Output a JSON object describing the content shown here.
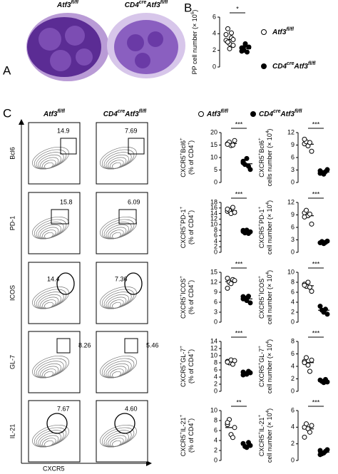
{
  "panel_a": {
    "label": "A",
    "titles": [
      [
        "Atf3",
        {
          "sup": "fl/fl"
        }
      ],
      [
        "CD4",
        {
          "sup": "cre"
        },
        "Atf3",
        {
          "sup": "fl/fl"
        }
      ]
    ]
  },
  "panel_b": {
    "label": "B",
    "legend": [
      [
        "Atf3",
        {
          "sup": "fl/fl"
        }
      ],
      [
        "CD4",
        {
          "sup": "cre"
        },
        "Atf3",
        {
          "sup": "fl/fl"
        }
      ]
    ],
    "chart": {
      "type": "dot",
      "ylabel": [
        [
          "PP cell number (× 10",
          {
            "sup": "6"
          },
          ")"
        ]
      ],
      "ylim": [
        0,
        6
      ],
      "yticks": [
        0,
        2,
        4,
        6
      ],
      "significance": "*",
      "series": [
        {
          "marker": "open",
          "values": [
            3.2,
            4.6,
            2.8,
            3.5,
            2.6,
            3.9,
            3.0,
            2.2,
            4.1,
            3.3
          ],
          "mean": 3.3
        },
        {
          "marker": "filled",
          "values": [
            2.3,
            2.0,
            2.6,
            1.8,
            2.4,
            1.9,
            2.1,
            2.8
          ],
          "mean": 2.2
        }
      ]
    }
  },
  "panel_c": {
    "label": "C",
    "column_titles": [
      [
        "Atf3",
        {
          "sup": "fl/fl"
        }
      ],
      [
        "CD4",
        {
          "sup": "cre"
        },
        "Atf3",
        {
          "sup": "fl/fl"
        }
      ]
    ],
    "legend": [
      [
        "Atf3",
        {
          "sup": "fl/fl"
        }
      ],
      [
        "CD4",
        {
          "sup": "cre"
        },
        "Atf3",
        {
          "sup": "fl/fl"
        }
      ]
    ],
    "x_label": "CXCR5",
    "rows": [
      {
        "marker": "Bcl6",
        "gates": [
          "14.9",
          "7.69"
        ],
        "dotplots": [
          {
            "type": "dot",
            "ylabel": [
              [
                "CXCR5",
                {
                  "sup": "+"
                },
                "Bcl6",
                {
                  "sup": "+"
                }
              ],
              [
                "(% of CD4",
                {
                  "sup": "+"
                },
                ")"
              ]
            ],
            "ylim": [
              0,
              20
            ],
            "yticks": [
              0,
              5,
              10,
              15,
              20
            ],
            "significance": "***",
            "series": [
              {
                "marker": "open",
                "values": [
                  15.5,
                  16.2,
                  14.8,
                  15.0,
                  16.8,
                  15.3
                ],
                "mean": 15.6
              },
              {
                "marker": "filled",
                "values": [
                  8.5,
                  7.2,
                  9.6,
                  6.5,
                  5.2,
                  7.9
                ],
                "mean": 7.5
              }
            ]
          },
          {
            "type": "dot",
            "ylabel": [
              [
                "CXCR5",
                {
                  "sup": "+"
                },
                "Bcl6",
                {
                  "sup": "+"
                }
              ],
              [
                "cells number (× 10",
                {
                  "sup": "4"
                },
                ")"
              ]
            ],
            "ylim": [
              0,
              12
            ],
            "yticks": [
              0,
              3,
              6,
              9,
              12
            ],
            "significance": "***",
            "series": [
              {
                "marker": "open",
                "values": [
                  9.3,
                  9.8,
                  8.8,
                  9.6,
                  7.5,
                  10.4
                ],
                "mean": 9.2
              },
              {
                "marker": "filled",
                "values": [
                  2.8,
                  2.4,
                  2.0,
                  2.6,
                  3.1,
                  2.2
                ],
                "mean": 2.5
              }
            ]
          }
        ]
      },
      {
        "marker": "PD-1",
        "gates": [
          "15.8",
          "6.09"
        ],
        "dotplots": [
          {
            "type": "dot",
            "ylabel": [
              [
                "CXCR5",
                {
                  "sup": "+"
                },
                "PD-1",
                {
                  "sup": "+"
                }
              ],
              [
                "(% of CD4",
                {
                  "sup": "+"
                },
                ")"
              ]
            ],
            "ylim": [
              0,
              18
            ],
            "yticks": [
              0,
              2,
              4,
              6,
              8,
              10,
              12,
              14,
              16,
              18
            ],
            "significance": "***",
            "series": [
              {
                "marker": "open",
                "values": [
                  14.8,
                  15.2,
                  14.0,
                  16.2,
                  14.4,
                  15.6
                ],
                "mean": 15.0
              },
              {
                "marker": "filled",
                "values": [
                  7.5,
                  7.0,
                  8.0,
                  6.8,
                  7.4,
                  7.9
                ],
                "mean": 7.4
              }
            ]
          },
          {
            "type": "dot",
            "ylabel": [
              [
                "CXCR5",
                {
                  "sup": "+"
                },
                "PD-1",
                {
                  "sup": "+"
                }
              ],
              [
                "cell number (× 10",
                {
                  "sup": "4"
                },
                ")"
              ]
            ],
            "ylim": [
              0,
              12
            ],
            "yticks": [
              0,
              3,
              6,
              9,
              12
            ],
            "significance": "***",
            "series": [
              {
                "marker": "open",
                "values": [
                  9.5,
                  10.1,
                  8.8,
                  9.2,
                  6.8,
                  8.5
                ],
                "mean": 8.8
              },
              {
                "marker": "filled",
                "values": [
                  2.3,
                  2.6,
                  2.1,
                  2.4,
                  2.7
                ],
                "mean": 2.4
              }
            ]
          }
        ]
      },
      {
        "marker": "ICOS",
        "gates": [
          "14.4",
          "7.36"
        ],
        "dotplots": [
          {
            "type": "dot",
            "ylabel": [
              [
                "CXCR5",
                {
                  "sup": "+"
                },
                "ICOS",
                {
                  "sup": "+"
                }
              ],
              [
                "(% of CD4",
                {
                  "sup": "+"
                },
                ")"
              ]
            ],
            "ylim": [
              0,
              15
            ],
            "yticks": [
              0,
              3,
              6,
              9,
              12,
              15
            ],
            "significance": "***",
            "series": [
              {
                "marker": "open",
                "values": [
                  13.2,
                  12.0,
                  11.6,
                  12.8,
                  12.5,
                  10.2
                ],
                "mean": 12.2
              },
              {
                "marker": "filled",
                "values": [
                  7.7,
                  7.2,
                  6.5,
                  7.8,
                  5.8,
                  7.0
                ],
                "mean": 7.0
              }
            ]
          },
          {
            "type": "dot",
            "ylabel": [
              [
                "CXCR5",
                {
                  "sup": "+"
                },
                "ICOS",
                {
                  "sup": "+"
                }
              ],
              [
                "cell number (× 10",
                {
                  "sup": "4"
                },
                ")"
              ]
            ],
            "ylim": [
              0,
              10
            ],
            "yticks": [
              0,
              2,
              4,
              6,
              8,
              10
            ],
            "significance": "***",
            "series": [
              {
                "marker": "open",
                "values": [
                  7.6,
                  7.2,
                  8.0,
                  7.0,
                  6.2,
                  7.4
                ],
                "mean": 7.3
              },
              {
                "marker": "filled",
                "values": [
                  3.2,
                  2.4,
                  2.0,
                  2.6,
                  1.6
                ],
                "mean": 2.4
              }
            ]
          }
        ]
      },
      {
        "marker": "GL-7",
        "gates": [
          "8.26",
          "5.46"
        ],
        "dotplots": [
          {
            "type": "dot",
            "ylabel": [
              [
                "CXCR5",
                {
                  "sup": "+"
                },
                "GL-7",
                {
                  "sup": "+"
                }
              ],
              [
                "(% of CD4",
                {
                  "sup": "+"
                },
                ")"
              ]
            ],
            "ylim": [
              0,
              14
            ],
            "yticks": [
              0,
              2,
              4,
              6,
              8,
              10,
              12,
              14
            ],
            "significance": "***",
            "series": [
              {
                "marker": "open",
                "values": [
                  8.4,
                  8.0,
                  8.8,
                  7.6,
                  8.6,
                  8.2
                ],
                "mean": 8.3
              },
              {
                "marker": "filled",
                "values": [
                  5.4,
                  5.0,
                  4.8,
                  5.6,
                  5.2,
                  4.6
                ],
                "mean": 5.1
              }
            ]
          },
          {
            "type": "dot",
            "ylabel": [
              [
                "CXCR5",
                {
                  "sup": "+"
                },
                "GL-7",
                {
                  "sup": "+"
                }
              ],
              [
                "cell number (× 10",
                {
                  "sup": "4"
                },
                ")"
              ]
            ],
            "ylim": [
              0,
              8
            ],
            "yticks": [
              0,
              2,
              4,
              6,
              8
            ],
            "significance": "***",
            "series": [
              {
                "marker": "open",
                "values": [
                  4.8,
                  5.4,
                  4.2,
                  3.2,
                  5.0,
                  4.6
                ],
                "mean": 4.6
              },
              {
                "marker": "filled",
                "values": [
                  1.8,
                  1.6,
                  1.4,
                  1.9,
                  1.5
                ],
                "mean": 1.6
              }
            ]
          }
        ]
      },
      {
        "marker": "IL-21",
        "gates": [
          "7.67",
          "4.60"
        ],
        "dotplots": [
          {
            "type": "dot",
            "ylabel": [
              [
                "CXCR5",
                {
                  "sup": "+"
                },
                "IL-21",
                {
                  "sup": "+"
                }
              ],
              [
                "(% of CD4",
                {
                  "sup": "+"
                },
                ")"
              ]
            ],
            "ylim": [
              0,
              10
            ],
            "yticks": [
              0,
              2,
              4,
              6,
              8,
              10
            ],
            "significance": "**",
            "series": [
              {
                "marker": "open",
                "values": [
                  7.2,
                  8.2,
                  5.2,
                  4.6,
                  6.6,
                  7.6
                ],
                "mean": 6.6
              },
              {
                "marker": "filled",
                "values": [
                  3.4,
                  2.8,
                  2.6,
                  3.6,
                  3.0
                ],
                "mean": 3.1
              }
            ]
          },
          {
            "type": "dot",
            "ylabel": [
              [
                "CXCR5",
                {
                  "sup": "+"
                },
                "IL-21",
                {
                  "sup": "+"
                }
              ],
              [
                "cell number (× 10",
                {
                  "sup": "4"
                },
                ")"
              ]
            ],
            "ylim": [
              0,
              6
            ],
            "yticks": [
              0,
              2,
              4,
              6
            ],
            "significance": "***",
            "series": [
              {
                "marker": "open",
                "values": [
                  4.0,
                  4.4,
                  3.8,
                  3.4,
                  4.2,
                  2.8
                ],
                "mean": 3.8
              },
              {
                "marker": "filled",
                "values": [
                  1.2,
                  0.8,
                  0.9,
                  1.1,
                  1.3,
                  0.7
                ],
                "mean": 1.0
              }
            ]
          }
        ]
      }
    ]
  }
}
